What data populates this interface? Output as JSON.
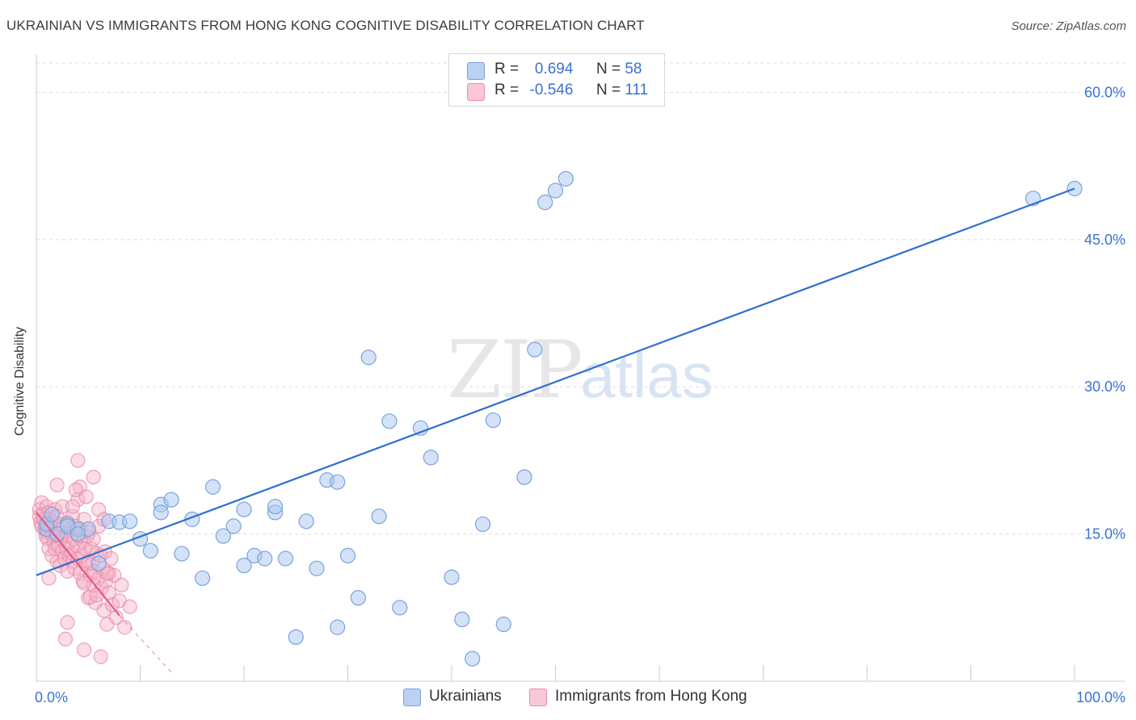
{
  "header": {
    "title": "UKRAINIAN VS IMMIGRANTS FROM HONG KONG COGNITIVE DISABILITY CORRELATION CHART",
    "source": "Source: ZipAtlas.com"
  },
  "legend_top": {
    "row1": {
      "r_label": "R =",
      "r_value": "0.694",
      "n_label": "N =",
      "n_value": "58"
    },
    "row2": {
      "r_label": "R =",
      "r_value": "-0.546",
      "n_label": "N =",
      "n_value": "111"
    }
  },
  "legend_bottom": {
    "series1": "Ukrainians",
    "series2": "Immigrants from Hong Kong"
  },
  "colors": {
    "blue_fill": "#a9c6ef",
    "blue_stroke": "#7aa3dc",
    "blue_line": "#2e6fd1",
    "pink_fill": "#f5b3c8",
    "pink_stroke": "#ec8aaa",
    "pink_line": "#e8578a",
    "tick_label": "#3a72d6",
    "grid": "#dddddd"
  },
  "chart_data": {
    "type": "scatter",
    "title": "UKRAINIAN VS IMMIGRANTS FROM HONG KONG COGNITIVE DISABILITY CORRELATION CHART",
    "xlabel": "",
    "ylabel": "Cognitive Disability",
    "xlim": [
      0,
      100
    ],
    "ylim": [
      0,
      63
    ],
    "x_tick_labels": [
      "0.0%",
      "100.0%"
    ],
    "y_ticks": [
      15,
      30,
      45,
      60
    ],
    "y_tick_labels": [
      "15.0%",
      "30.0%",
      "45.0%",
      "60.0%"
    ],
    "grid": true,
    "legend_position": "bottom-center",
    "watermark": "ZIPatlas",
    "series": [
      {
        "name": "Ukrainians",
        "R": 0.694,
        "N": 58,
        "trend": {
          "x": [
            0,
            100
          ],
          "y": [
            10.8,
            50.2
          ]
        },
        "points": [
          [
            1,
            15.5
          ],
          [
            3,
            16
          ],
          [
            4,
            15.5
          ],
          [
            5,
            15.5
          ],
          [
            6,
            12
          ],
          [
            7,
            16.3
          ],
          [
            8,
            16.2
          ],
          [
            9,
            16.3
          ],
          [
            10,
            14.5
          ],
          [
            11,
            13.3
          ],
          [
            12,
            18
          ],
          [
            12,
            17.2
          ],
          [
            13,
            18.5
          ],
          [
            14,
            13
          ],
          [
            15,
            16.5
          ],
          [
            16,
            10.5
          ],
          [
            17,
            19.8
          ],
          [
            18,
            14.8
          ],
          [
            19,
            15.8
          ],
          [
            20,
            17.5
          ],
          [
            20,
            11.8
          ],
          [
            21,
            12.8
          ],
          [
            22,
            12.5
          ],
          [
            23,
            17.2
          ],
          [
            23,
            17.8
          ],
          [
            24,
            12.5
          ],
          [
            25,
            4.5
          ],
          [
            26,
            16.3
          ],
          [
            27,
            11.5
          ],
          [
            28,
            20.5
          ],
          [
            29,
            5.5
          ],
          [
            29,
            20.3
          ],
          [
            30,
            12.8
          ],
          [
            31,
            8.5
          ],
          [
            32,
            33
          ],
          [
            33,
            16.8
          ],
          [
            34,
            26.5
          ],
          [
            35,
            7.5
          ],
          [
            37,
            25.8
          ],
          [
            38,
            22.8
          ],
          [
            40,
            10.6
          ],
          [
            41,
            6.3
          ],
          [
            42,
            2.3
          ],
          [
            43,
            16
          ],
          [
            44,
            26.6
          ],
          [
            45,
            5.8
          ],
          [
            47,
            20.8
          ],
          [
            48,
            33.8
          ],
          [
            49,
            48.8
          ],
          [
            50,
            50
          ],
          [
            51,
            51.2
          ],
          [
            96,
            49.2
          ],
          [
            100,
            50.2
          ],
          [
            1,
            16
          ],
          [
            2,
            15
          ],
          [
            3,
            15.8
          ],
          [
            1.5,
            17
          ],
          [
            4,
            15
          ]
        ]
      },
      {
        "name": "Immigrants from Hong Kong",
        "R": -0.546,
        "N": 111,
        "trend": {
          "x": [
            0,
            8
          ],
          "y": [
            17.2,
            6.7
          ]
        },
        "trend_dashed": {
          "x": [
            8,
            13
          ],
          "y": [
            6.7,
            0.9
          ]
        },
        "points": [
          [
            0.3,
            17.5
          ],
          [
            0.3,
            16.8
          ],
          [
            0.4,
            16.2
          ],
          [
            0.5,
            15.8
          ],
          [
            0.5,
            18.2
          ],
          [
            0.6,
            17
          ],
          [
            0.7,
            16.5
          ],
          [
            0.8,
            15.5
          ],
          [
            0.9,
            14.8
          ],
          [
            1,
            17.8
          ],
          [
            1,
            16
          ],
          [
            1,
            15.2
          ],
          [
            1.1,
            14.5
          ],
          [
            1.2,
            13.5
          ],
          [
            1.2,
            17.2
          ],
          [
            1.3,
            16.5
          ],
          [
            1.4,
            15.8
          ],
          [
            1.5,
            15
          ],
          [
            1.5,
            12.8
          ],
          [
            1.6,
            16.2
          ],
          [
            1.7,
            14.2
          ],
          [
            1.8,
            13.5
          ],
          [
            1.8,
            17.5
          ],
          [
            1.9,
            15.5
          ],
          [
            2,
            16.8
          ],
          [
            2,
            14.8
          ],
          [
            2,
            12.2
          ],
          [
            2.1,
            13.8
          ],
          [
            2.2,
            15.2
          ],
          [
            2.3,
            11.8
          ],
          [
            2.3,
            16
          ],
          [
            2.4,
            14.5
          ],
          [
            2.5,
            13.2
          ],
          [
            2.5,
            17.8
          ],
          [
            2.6,
            15.8
          ],
          [
            2.7,
            12.5
          ],
          [
            2.8,
            14.8
          ],
          [
            2.9,
            13.5
          ],
          [
            3,
            16.2
          ],
          [
            3,
            11.2
          ],
          [
            3,
            15
          ],
          [
            3.1,
            14
          ],
          [
            3.2,
            12.8
          ],
          [
            3.3,
            15.5
          ],
          [
            3.4,
            13
          ],
          [
            3.5,
            16.8
          ],
          [
            3.5,
            12.2
          ],
          [
            3.6,
            14.5
          ],
          [
            3.7,
            11.5
          ],
          [
            3.8,
            15.8
          ],
          [
            3.9,
            13.8
          ],
          [
            4,
            12.5
          ],
          [
            4,
            18.5
          ],
          [
            4.1,
            14.8
          ],
          [
            4.2,
            11
          ],
          [
            4.3,
            15.5
          ],
          [
            4.4,
            12.8
          ],
          [
            4.5,
            10.2
          ],
          [
            4.5,
            14.2
          ],
          [
            4.6,
            16.5
          ],
          [
            4.7,
            13.5
          ],
          [
            4.8,
            11.8
          ],
          [
            4.9,
            14.8
          ],
          [
            5,
            12.2
          ],
          [
            5,
            8.5
          ],
          [
            5.1,
            15.2
          ],
          [
            5.2,
            10.8
          ],
          [
            5.3,
            13.5
          ],
          [
            5.4,
            12
          ],
          [
            5.5,
            9.8
          ],
          [
            5.5,
            14.5
          ],
          [
            5.6,
            11.2
          ],
          [
            5.7,
            8
          ],
          [
            5.8,
            13
          ],
          [
            6,
            10.5
          ],
          [
            6,
            15.8
          ],
          [
            6.2,
            12.8
          ],
          [
            6.3,
            9.5
          ],
          [
            6.4,
            11.5
          ],
          [
            6.5,
            7.2
          ],
          [
            6.6,
            13.2
          ],
          [
            6.7,
            10.2
          ],
          [
            6.8,
            5.8
          ],
          [
            7,
            11
          ],
          [
            7,
            9
          ],
          [
            7.2,
            12.5
          ],
          [
            7.3,
            7.8
          ],
          [
            7.5,
            10.8
          ],
          [
            7.7,
            6.5
          ],
          [
            8,
            8.2
          ],
          [
            8.2,
            9.8
          ],
          [
            8.5,
            5.5
          ],
          [
            9,
            7.6
          ],
          [
            4,
            22.5
          ],
          [
            4.2,
            19.8
          ],
          [
            5.5,
            20.8
          ],
          [
            6,
            17.5
          ],
          [
            3.8,
            19.5
          ],
          [
            2,
            20
          ],
          [
            6.5,
            16.5
          ],
          [
            2.8,
            4.3
          ],
          [
            3,
            6
          ],
          [
            4.6,
            3.2
          ],
          [
            4.6,
            10
          ],
          [
            5.2,
            8.6
          ],
          [
            6.2,
            2.5
          ],
          [
            5.8,
            8.8
          ],
          [
            3.5,
            17.8
          ],
          [
            4.8,
            18.8
          ],
          [
            1.2,
            10.5
          ],
          [
            6.8,
            11
          ]
        ]
      }
    ]
  }
}
